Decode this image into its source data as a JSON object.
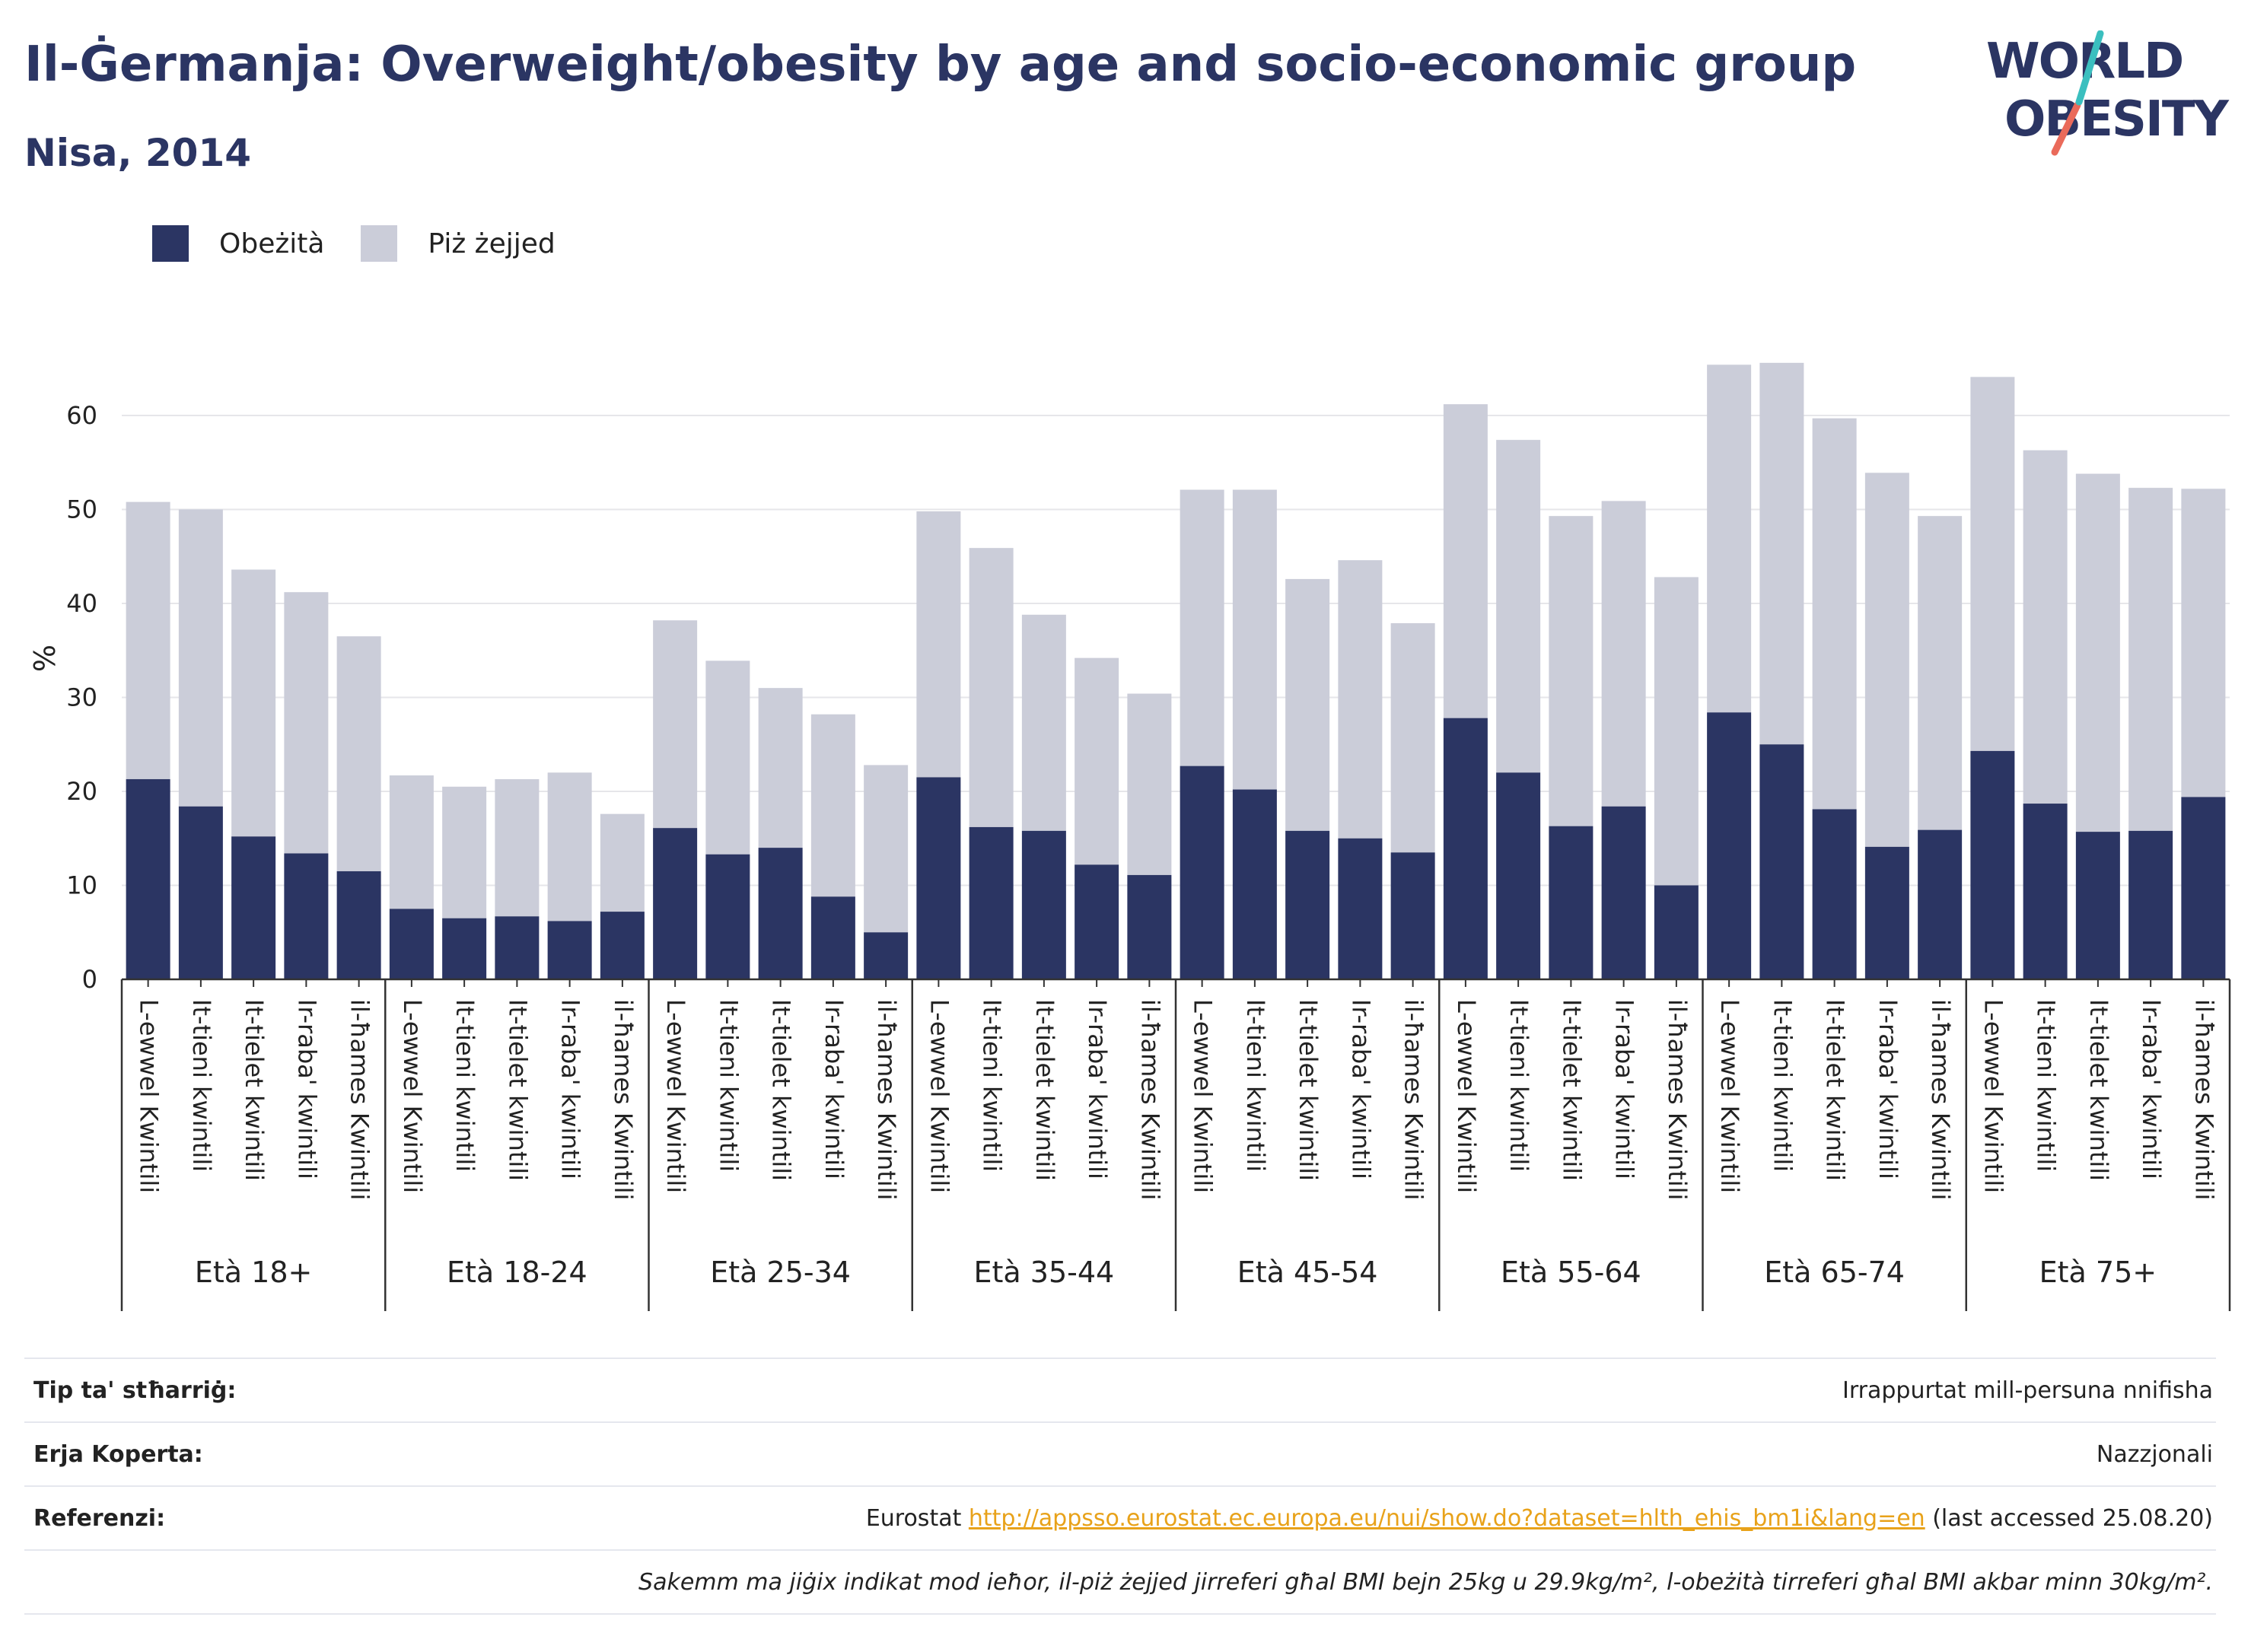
{
  "title": "Il-Ġermanja: Overweight/obesity by age and socio-economic group",
  "subtitle": "Nisa, 2014",
  "logo": {
    "line1": "WORLD",
    "line2": "OBESITY"
  },
  "colors": {
    "obese": "#2b3563",
    "overweight": "#cbcdd9",
    "title": "#2b3563",
    "link": "#e8a21a"
  },
  "chart_data": {
    "type": "bar",
    "stacked": true,
    "ylabel": "%",
    "ylim": [
      0,
      70
    ],
    "yticks": [
      0,
      10,
      20,
      30,
      40,
      50,
      60
    ],
    "grid": true,
    "legend_position": "top-left",
    "groups": [
      "Età 18+",
      "Età 18-24",
      "Età 25-34",
      "Età 35-44",
      "Età 45-54",
      "Età 55-64",
      "Età 65-74",
      "Età 75+"
    ],
    "categories": [
      "L-ewwel Kwintili",
      "It-tieni kwintili",
      "It-tielet kwintili",
      "Ir-raba' kwintili",
      "il-ħames Kwintili"
    ],
    "series": [
      {
        "name": "Obeżità",
        "values": [
          [
            21.3,
            18.4,
            15.2,
            13.4,
            11.5
          ],
          [
            7.5,
            6.5,
            6.7,
            6.2,
            7.2
          ],
          [
            16.1,
            13.3,
            14.0,
            8.8,
            5.0
          ],
          [
            21.5,
            16.2,
            15.8,
            12.2,
            11.1
          ],
          [
            22.7,
            20.2,
            15.8,
            15.0,
            13.5
          ],
          [
            27.8,
            22.0,
            16.3,
            18.4,
            10.0
          ],
          [
            28.4,
            25.0,
            18.1,
            14.1,
            15.9
          ],
          [
            24.3,
            18.7,
            15.7,
            15.8,
            19.4
          ]
        ]
      },
      {
        "name": "Piż żejjed",
        "values": [
          [
            29.5,
            31.6,
            28.4,
            27.8,
            25.0
          ],
          [
            14.2,
            14.0,
            14.6,
            15.8,
            10.4
          ],
          [
            22.1,
            20.6,
            17.0,
            19.4,
            17.8
          ],
          [
            28.3,
            29.7,
            23.0,
            22.0,
            19.3
          ],
          [
            29.4,
            31.9,
            26.8,
            29.6,
            24.4
          ],
          [
            33.4,
            35.4,
            33.0,
            32.5,
            32.8
          ],
          [
            37.0,
            40.6,
            41.6,
            39.8,
            33.4
          ],
          [
            39.8,
            37.6,
            38.1,
            36.5,
            32.8
          ]
        ]
      }
    ]
  },
  "footer": {
    "rows": [
      {
        "key": "Tip ta' stħarriġ:",
        "value": "Irrappurtat mill-persuna nnifisha"
      },
      {
        "key": "Erja Koperta:",
        "value": "Nazzjonali"
      }
    ],
    "reference": {
      "key": "Referenzi:",
      "prefix": "Eurostat ",
      "link": "http://appsso.eurostat.ec.europa.eu/nui/show.do?dataset=hlth_ehis_bm1i&lang=en",
      "suffix": " (last accessed 25.08.20)"
    },
    "note": "Sakemm ma jiġix indikat mod ieħor, il-piż żejjed jirreferi għal BMI bejn 25kg u 29.9kg/m², l-obeżità tirreferi għal BMI akbar minn 30kg/m²."
  }
}
